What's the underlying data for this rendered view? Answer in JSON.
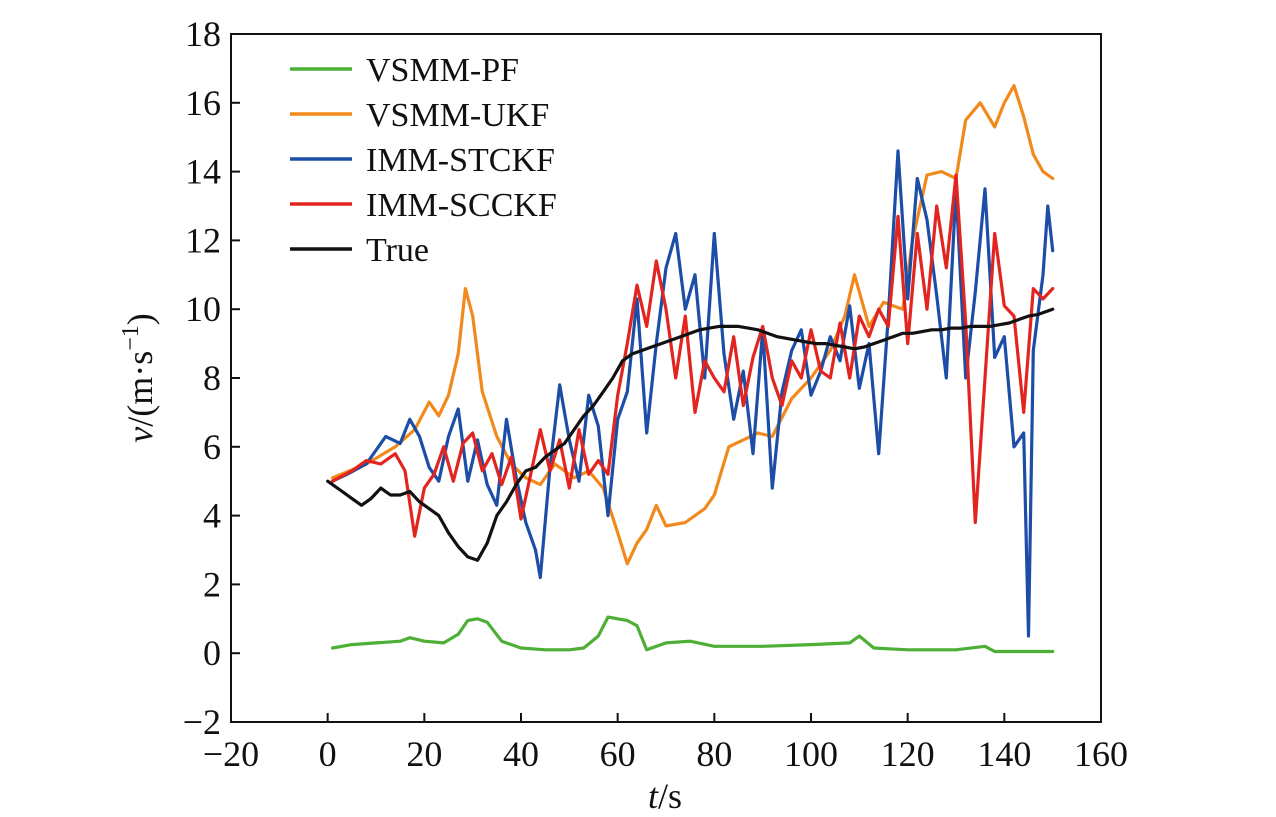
{
  "chart_data": {
    "type": "line",
    "title": "",
    "xlabel": {
      "var": "t",
      "unit": "/s"
    },
    "ylabel": {
      "var": "v",
      "unit_prefix": "/(m·s",
      "unit_exp": "−1",
      "unit_suffix": ")"
    },
    "xlim": [
      -20,
      160
    ],
    "ylim": [
      -2,
      18
    ],
    "xticks": [
      -20,
      0,
      20,
      40,
      60,
      80,
      100,
      120,
      140,
      160
    ],
    "yticks": [
      -2,
      0,
      2,
      4,
      6,
      8,
      10,
      12,
      14,
      16,
      18
    ],
    "xtick_labels": [
      "−20",
      "0",
      "20",
      "40",
      "60",
      "80",
      "100",
      "120",
      "140",
      "160"
    ],
    "ytick_labels": [
      "−2",
      "0",
      "2",
      "4",
      "6",
      "8",
      "10",
      "12",
      "14",
      "16",
      "18"
    ],
    "grid": false,
    "legend_position": "top-left",
    "series": [
      {
        "name": "VSMM-PF",
        "color": "#4daf36",
        "x": [
          1,
          5,
          10,
          15,
          17,
          20,
          24,
          27,
          29,
          31,
          33,
          36,
          40,
          45,
          50,
          53,
          56,
          58,
          60,
          62,
          64,
          66,
          70,
          75,
          80,
          90,
          100,
          108,
          110,
          113,
          120,
          130,
          136,
          138,
          145,
          150
        ],
        "y": [
          0.15,
          0.25,
          0.3,
          0.35,
          0.45,
          0.35,
          0.3,
          0.55,
          0.95,
          1.0,
          0.9,
          0.35,
          0.15,
          0.1,
          0.1,
          0.15,
          0.5,
          1.05,
          1.0,
          0.95,
          0.8,
          0.1,
          0.3,
          0.35,
          0.2,
          0.2,
          0.25,
          0.3,
          0.5,
          0.15,
          0.1,
          0.1,
          0.2,
          0.05,
          0.05,
          0.05
        ]
      },
      {
        "name": "VSMM-UKF",
        "color": "#f2891c",
        "x": [
          1,
          8,
          14,
          18,
          21,
          23,
          25,
          27,
          28.5,
          30,
          32,
          35,
          38,
          41,
          44,
          47,
          51,
          54,
          57,
          60,
          62,
          64,
          66,
          68,
          70,
          74,
          78,
          80,
          83,
          86,
          89,
          92,
          96,
          100,
          104,
          107,
          109,
          112,
          115,
          119,
          121,
          124,
          127,
          130,
          132,
          135,
          138,
          140,
          142,
          144,
          146,
          148,
          150
        ],
        "y": [
          5.1,
          5.5,
          6.0,
          6.5,
          7.3,
          6.9,
          7.5,
          8.7,
          10.6,
          9.8,
          7.6,
          6.3,
          5.5,
          5.1,
          4.9,
          5.5,
          5.1,
          5.3,
          4.8,
          3.5,
          2.6,
          3.2,
          3.6,
          4.3,
          3.7,
          3.8,
          4.2,
          4.6,
          6.0,
          6.2,
          6.4,
          6.3,
          7.4,
          8.0,
          8.8,
          9.8,
          11.0,
          9.5,
          10.2,
          10.0,
          12.0,
          13.9,
          14.0,
          13.8,
          15.5,
          16.0,
          15.3,
          16.0,
          16.5,
          15.6,
          14.5,
          14.0,
          13.8
        ]
      },
      {
        "name": "IMM-STCKF",
        "color": "#1c4ea8",
        "x": [
          1,
          4,
          8,
          12,
          15,
          17,
          19,
          21,
          23,
          25,
          27,
          29,
          31,
          33,
          35,
          37,
          39,
          41,
          43,
          44,
          46,
          48,
          50,
          52,
          54,
          56,
          58,
          60,
          62,
          64,
          66,
          68,
          70,
          72,
          74,
          76,
          78,
          80,
          82,
          84,
          86,
          88,
          90,
          92,
          94,
          96,
          98,
          100,
          102,
          104,
          106,
          108,
          110,
          112,
          114,
          116,
          118,
          120,
          122,
          124,
          126,
          128,
          130,
          132,
          134,
          136,
          138,
          140,
          142,
          144,
          145,
          146,
          148,
          149,
          150
        ],
        "y": [
          5.0,
          5.2,
          5.5,
          6.3,
          6.1,
          6.8,
          6.3,
          5.4,
          5.0,
          6.3,
          7.1,
          5.0,
          6.2,
          4.9,
          4.3,
          6.8,
          5.1,
          3.8,
          3.0,
          2.2,
          5.4,
          7.8,
          6.2,
          5.0,
          7.5,
          6.6,
          4.0,
          6.8,
          7.6,
          10.3,
          6.4,
          9.0,
          11.2,
          12.2,
          10.0,
          11.0,
          8.0,
          12.2,
          8.7,
          6.8,
          8.2,
          5.8,
          9.4,
          4.8,
          7.6,
          8.8,
          9.4,
          7.5,
          8.2,
          9.2,
          8.5,
          10.1,
          7.7,
          9.0,
          5.8,
          9.8,
          14.6,
          10.3,
          13.8,
          12.6,
          10.4,
          8.0,
          13.5,
          8.0,
          10.5,
          13.5,
          8.6,
          9.2,
          6.0,
          6.4,
          0.5,
          8.8,
          11.0,
          13.0,
          11.7
        ]
      },
      {
        "name": "IMM-SCCKF",
        "color": "#e2251f",
        "x": [
          1,
          5,
          8,
          11,
          14,
          16,
          18,
          20,
          22,
          24,
          26,
          28,
          30,
          32,
          34,
          36,
          38,
          40,
          42,
          44,
          46,
          48,
          50,
          52,
          54,
          56,
          58,
          60,
          62,
          64,
          66,
          68,
          70,
          72,
          74,
          76,
          78,
          80,
          82,
          84,
          86,
          88,
          90,
          92,
          94,
          96,
          98,
          100,
          102,
          104,
          106,
          108,
          110,
          112,
          114,
          116,
          118,
          120,
          122,
          124,
          126,
          128,
          130,
          132,
          134,
          136,
          138,
          140,
          142,
          144,
          146,
          148,
          150
        ],
        "y": [
          5.0,
          5.3,
          5.6,
          5.5,
          5.8,
          5.3,
          3.4,
          4.8,
          5.2,
          6.0,
          5.0,
          6.1,
          6.4,
          5.3,
          5.8,
          4.9,
          5.7,
          3.9,
          5.2,
          6.5,
          5.3,
          6.2,
          4.8,
          6.5,
          5.2,
          5.6,
          5.2,
          7.5,
          9.0,
          10.7,
          9.5,
          11.4,
          10.0,
          8.0,
          9.8,
          7.0,
          8.5,
          8.0,
          7.6,
          9.2,
          7.2,
          8.6,
          9.5,
          8.0,
          7.2,
          8.5,
          8.0,
          9.4,
          8.2,
          8.0,
          9.6,
          8.0,
          9.8,
          9.2,
          10.0,
          9.5,
          12.7,
          9.0,
          12.2,
          10.0,
          13.0,
          11.2,
          13.9,
          9.6,
          3.8,
          8.0,
          12.2,
          10.1,
          9.8,
          7.0,
          10.6,
          10.3,
          10.6
        ]
      },
      {
        "name": "True",
        "color": "#111111",
        "x": [
          0,
          3,
          5,
          7,
          9,
          11,
          13,
          15,
          17,
          19,
          21,
          23,
          25,
          27,
          29,
          31,
          33,
          35,
          37,
          39,
          41,
          43,
          45,
          47,
          49,
          51,
          53,
          55,
          57,
          59,
          61,
          63,
          65,
          67,
          69,
          71,
          73,
          75,
          77,
          79,
          81,
          83,
          85,
          87,
          89,
          91,
          93,
          95,
          97,
          99,
          101,
          103,
          105,
          107,
          109,
          111,
          113,
          115,
          117,
          119,
          121,
          123,
          125,
          127,
          129,
          131,
          133,
          135,
          137,
          139,
          141,
          143,
          145,
          147,
          150
        ],
        "y": [
          5.0,
          4.7,
          4.5,
          4.3,
          4.5,
          4.8,
          4.6,
          4.6,
          4.7,
          4.4,
          4.2,
          4.0,
          3.5,
          3.1,
          2.8,
          2.7,
          3.2,
          4.0,
          4.4,
          4.9,
          5.3,
          5.4,
          5.7,
          5.9,
          6.1,
          6.5,
          6.9,
          7.2,
          7.6,
          8.0,
          8.5,
          8.7,
          8.8,
          8.9,
          9.0,
          9.1,
          9.2,
          9.3,
          9.4,
          9.45,
          9.5,
          9.5,
          9.5,
          9.45,
          9.4,
          9.3,
          9.2,
          9.15,
          9.1,
          9.05,
          9.0,
          9.0,
          8.95,
          8.9,
          8.85,
          8.9,
          9.0,
          9.1,
          9.2,
          9.3,
          9.3,
          9.35,
          9.4,
          9.4,
          9.45,
          9.45,
          9.5,
          9.5,
          9.5,
          9.55,
          9.6,
          9.7,
          9.8,
          9.85,
          10.0
        ]
      }
    ]
  }
}
